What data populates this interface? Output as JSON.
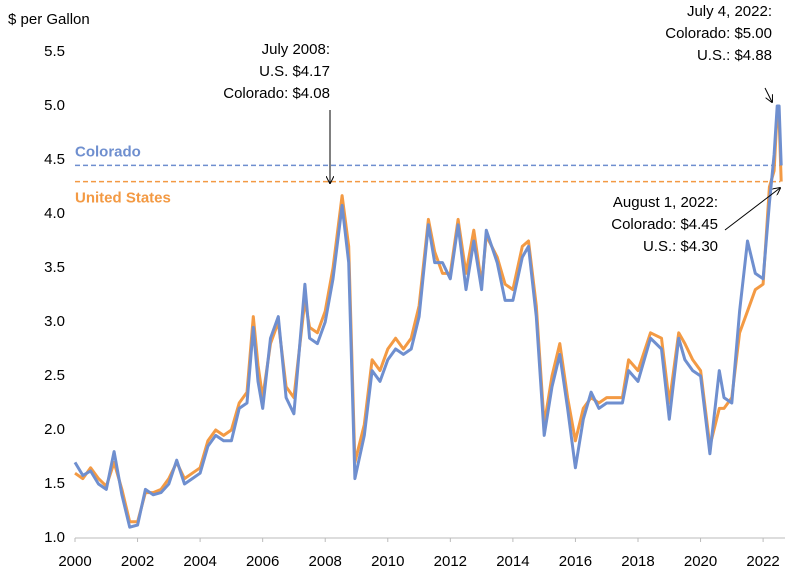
{
  "chart_data": {
    "type": "line",
    "y_label": "$ per Gallon",
    "xlim": [
      2000,
      2022.7
    ],
    "xticks": [
      2000,
      2002,
      2004,
      2006,
      2008,
      2010,
      2012,
      2014,
      2016,
      2018,
      2020,
      2022
    ],
    "ylim": [
      1,
      5.5
    ],
    "yticks": [
      {
        "value": 1,
        "label": "1.0"
      },
      1.5,
      {
        "value": 2,
        "label": "2.0"
      },
      2.5,
      {
        "value": 3,
        "label": "3.0"
      },
      3.5,
      {
        "value": 4,
        "label": "4.0"
      },
      4.5,
      {
        "value": 5,
        "label": "5.0"
      },
      5.5
    ],
    "grid": false,
    "series": [
      {
        "name": "United States",
        "color": "#f39a44",
        "x": [
          2000,
          2000.25,
          2000.5,
          2000.75,
          2001,
          2001.25,
          2001.5,
          2001.75,
          2002,
          2002.25,
          2002.5,
          2002.75,
          2003,
          2003.25,
          2003.5,
          2003.75,
          2004,
          2004.25,
          2004.5,
          2004.75,
          2005,
          2005.25,
          2005.5,
          2005.7,
          2005.85,
          2006,
          2006.25,
          2006.5,
          2006.75,
          2007,
          2007.35,
          2007.5,
          2007.75,
          2008,
          2008.25,
          2008.54,
          2008.75,
          2008.95,
          2009.25,
          2009.5,
          2009.75,
          2010,
          2010.25,
          2010.5,
          2010.75,
          2011,
          2011.3,
          2011.5,
          2011.75,
          2012,
          2012.25,
          2012.5,
          2012.75,
          2013,
          2013.15,
          2013.5,
          2013.75,
          2014,
          2014.3,
          2014.5,
          2014.75,
          2015,
          2015.25,
          2015.5,
          2015.75,
          2016,
          2016.25,
          2016.5,
          2016.75,
          2017,
          2017.5,
          2017.7,
          2018,
          2018.4,
          2018.75,
          2019,
          2019.3,
          2019.5,
          2019.75,
          2020,
          2020.3,
          2020.6,
          2020.75,
          2021,
          2021.25,
          2021.5,
          2021.75,
          2022,
          2022.2,
          2022.35,
          2022.45,
          2022.51,
          2022.58
        ],
        "values": [
          1.6,
          1.55,
          1.65,
          1.55,
          1.48,
          1.7,
          1.45,
          1.15,
          1.15,
          1.42,
          1.42,
          1.45,
          1.55,
          1.7,
          1.55,
          1.6,
          1.65,
          1.9,
          2.0,
          1.95,
          2.0,
          2.25,
          2.35,
          3.05,
          2.6,
          2.3,
          2.8,
          3.0,
          2.4,
          2.3,
          3.2,
          2.95,
          2.9,
          3.1,
          3.5,
          4.17,
          3.7,
          1.7,
          2.05,
          2.65,
          2.55,
          2.75,
          2.85,
          2.75,
          2.85,
          3.15,
          3.95,
          3.65,
          3.45,
          3.45,
          3.95,
          3.45,
          3.85,
          3.35,
          3.8,
          3.6,
          3.35,
          3.3,
          3.7,
          3.75,
          3.15,
          2.05,
          2.5,
          2.8,
          2.3,
          1.9,
          2.2,
          2.3,
          2.25,
          2.3,
          2.3,
          2.65,
          2.55,
          2.9,
          2.85,
          2.25,
          2.9,
          2.8,
          2.65,
          2.55,
          1.85,
          2.2,
          2.2,
          2.3,
          2.9,
          3.1,
          3.3,
          3.35,
          4.25,
          4.4,
          4.95,
          4.88,
          4.3
        ]
      },
      {
        "name": "Colorado",
        "color": "#6f8fcf",
        "x": [
          2000,
          2000.25,
          2000.5,
          2000.75,
          2001,
          2001.25,
          2001.5,
          2001.75,
          2002,
          2002.25,
          2002.5,
          2002.75,
          2003,
          2003.25,
          2003.5,
          2003.75,
          2004,
          2004.25,
          2004.5,
          2004.75,
          2005,
          2005.25,
          2005.5,
          2005.7,
          2005.85,
          2006,
          2006.25,
          2006.5,
          2006.75,
          2007,
          2007.35,
          2007.5,
          2007.75,
          2008,
          2008.25,
          2008.54,
          2008.75,
          2008.95,
          2009.25,
          2009.5,
          2009.75,
          2010,
          2010.25,
          2010.5,
          2010.75,
          2011,
          2011.3,
          2011.5,
          2011.75,
          2012,
          2012.25,
          2012.5,
          2012.75,
          2013,
          2013.15,
          2013.5,
          2013.75,
          2014,
          2014.3,
          2014.5,
          2014.75,
          2015,
          2015.25,
          2015.5,
          2015.75,
          2016,
          2016.25,
          2016.5,
          2016.75,
          2017,
          2017.5,
          2017.7,
          2018,
          2018.4,
          2018.75,
          2019,
          2019.3,
          2019.5,
          2019.75,
          2020,
          2020.3,
          2020.6,
          2020.75,
          2021,
          2021.25,
          2021.5,
          2021.75,
          2022,
          2022.2,
          2022.35,
          2022.45,
          2022.51,
          2022.58
        ],
        "values": [
          1.7,
          1.58,
          1.62,
          1.5,
          1.45,
          1.8,
          1.4,
          1.1,
          1.12,
          1.45,
          1.4,
          1.42,
          1.5,
          1.72,
          1.5,
          1.55,
          1.6,
          1.85,
          1.95,
          1.9,
          1.9,
          2.2,
          2.25,
          2.95,
          2.45,
          2.2,
          2.85,
          3.05,
          2.3,
          2.15,
          3.35,
          2.85,
          2.8,
          3.0,
          3.4,
          4.08,
          3.55,
          1.55,
          1.95,
          2.55,
          2.45,
          2.65,
          2.75,
          2.7,
          2.75,
          3.05,
          3.9,
          3.55,
          3.55,
          3.4,
          3.9,
          3.3,
          3.75,
          3.3,
          3.85,
          3.55,
          3.2,
          3.2,
          3.6,
          3.7,
          3.05,
          1.95,
          2.4,
          2.7,
          2.2,
          1.65,
          2.1,
          2.35,
          2.2,
          2.25,
          2.25,
          2.55,
          2.45,
          2.85,
          2.75,
          2.1,
          2.85,
          2.65,
          2.55,
          2.5,
          1.78,
          2.55,
          2.3,
          2.25,
          3.1,
          3.75,
          3.45,
          3.4,
          4.1,
          4.55,
          5.0,
          5.0,
          4.45
        ]
      }
    ],
    "reference_lines": [
      {
        "label": "Colorado",
        "value": 4.45,
        "color": "#6f8fcf"
      },
      {
        "label": "United States",
        "value": 4.3,
        "color": "#f39a44"
      }
    ],
    "annotations": [
      {
        "lines": [
          "July 2008:",
          "U.S. $4.17",
          "Colorado: $4.08"
        ]
      },
      {
        "lines": [
          "July 4, 2022:",
          "Colorado: $5.00",
          "U.S.: $4.88"
        ]
      },
      {
        "lines": [
          "August 1, 2022:",
          "Colorado: $4.45",
          "U.S.: $4.30"
        ]
      }
    ]
  }
}
